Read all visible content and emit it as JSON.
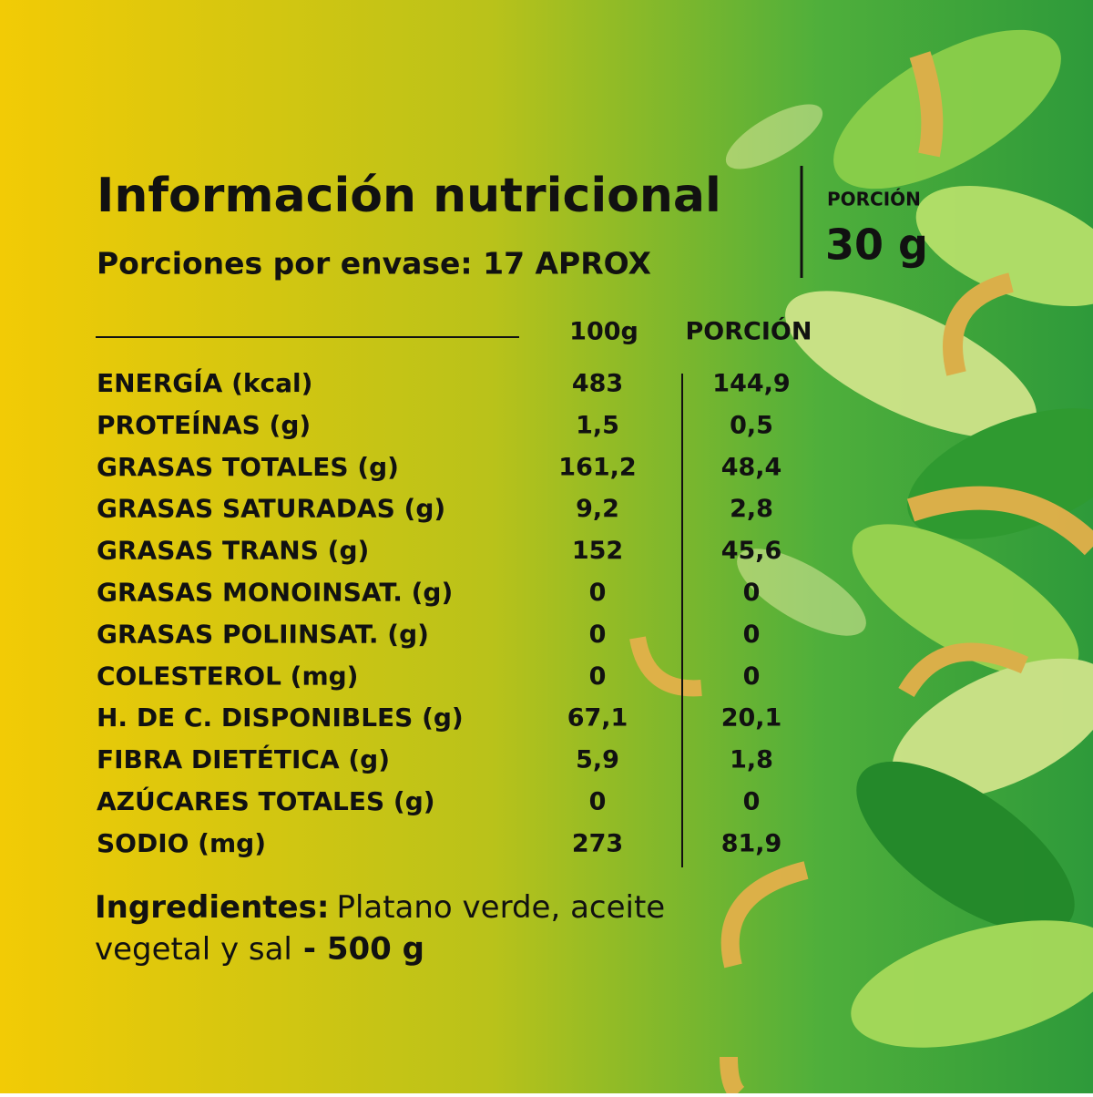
{
  "header": {
    "title": "Información nutricional",
    "servings": "Porciones por envase: 17 APROX"
  },
  "portion": {
    "label": "PORCIÓN",
    "value": "30 g"
  },
  "table": {
    "columns": [
      "100g",
      "PORCIÓN"
    ],
    "rows": [
      [
        "ENERGÍA (kcal)",
        "483",
        "144,9"
      ],
      [
        "PROTEÍNAS (g)",
        "1,5",
        "0,5"
      ],
      [
        "GRASAS TOTALES (g)",
        "161,2",
        "48,4"
      ],
      [
        "GRASAS SATURADAS (g)",
        "9,2",
        "2,8"
      ],
      [
        "GRASAS TRANS (g)",
        "152",
        "45,6"
      ],
      [
        "GRASAS MONOINSAT. (g)",
        "0",
        "0"
      ],
      [
        "GRASAS POLIINSAT. (g)",
        "0",
        "0"
      ],
      [
        "COLESTEROL (mg)",
        "0",
        "0"
      ],
      [
        "H. DE C. DISPONIBLES (g)",
        "67,1",
        "20,1"
      ],
      [
        "FIBRA DIETÉTICA (g)",
        "5,9",
        "1,8"
      ],
      [
        "AZÚCARES TOTALES (g)",
        "0",
        "0"
      ],
      [
        "SODIO (mg)",
        "273",
        "81,9"
      ]
    ]
  },
  "ingredients": {
    "label": "Ingredientes:",
    "text": "Platano verde, aceite vegetal y sal",
    "weight": "- 500 g"
  }
}
